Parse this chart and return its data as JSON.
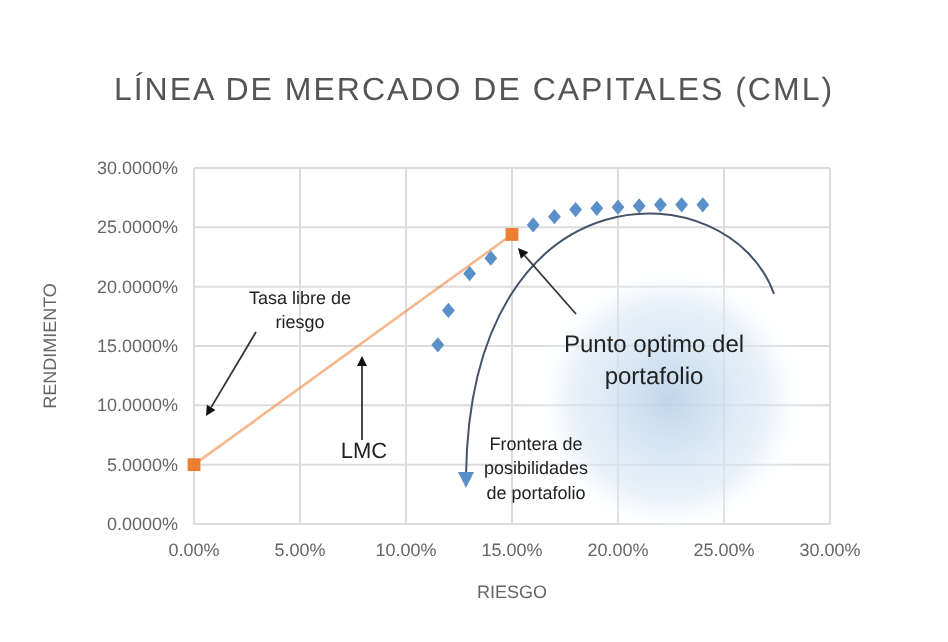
{
  "chart_data": {
    "type": "scatter",
    "title": "LÍNEA DE MERCADO DE CAPITALES (CML)",
    "xlabel": "RIESGO",
    "ylabel": "RENDIMIENTO",
    "xlim": [
      0,
      30
    ],
    "xticks": [
      {
        "value": 0,
        "label": "0.00%"
      },
      {
        "value": 5,
        "label": "5.00%"
      },
      {
        "value": 10,
        "label": "10.00%"
      },
      {
        "value": 15,
        "label": "15.00%"
      },
      {
        "value": 20,
        "label": "20.00%"
      },
      {
        "value": 25,
        "label": "25.00%"
      },
      {
        "value": 30,
        "label": "30.00%"
      }
    ],
    "ylim": [
      0,
      30
    ],
    "yticks": [
      {
        "value": 0,
        "label": "0.0000%"
      },
      {
        "value": 5,
        "label": "5.0000%"
      },
      {
        "value": 10,
        "label": "10.0000%"
      },
      {
        "value": 15,
        "label": "15.0000%"
      },
      {
        "value": 20,
        "label": "20.0000%"
      },
      {
        "value": 25,
        "label": "25.0000%"
      },
      {
        "value": 30,
        "label": "30.0000%"
      }
    ],
    "grid": true,
    "series": [
      {
        "type": "line",
        "color": "#ed7d31",
        "marker": "square",
        "x": [
          0,
          15
        ],
        "values": [
          5,
          24.4
        ]
      },
      {
        "color": "#5b8fc7",
        "marker": "diamond",
        "x": [
          11.5,
          12,
          13,
          14,
          16,
          17,
          18,
          19,
          20,
          21,
          22,
          23,
          24
        ],
        "values": [
          15.1,
          18,
          21.1,
          22.4,
          25.2,
          25.9,
          26.5,
          26.6,
          26.7,
          26.8,
          26.9,
          26.9,
          26.9
        ]
      }
    ],
    "annotations": [
      "Tasa libre de riesgo",
      "LMC",
      "Punto optimo del portafolio",
      "Frontera de posibilidades de portafolio"
    ]
  }
}
